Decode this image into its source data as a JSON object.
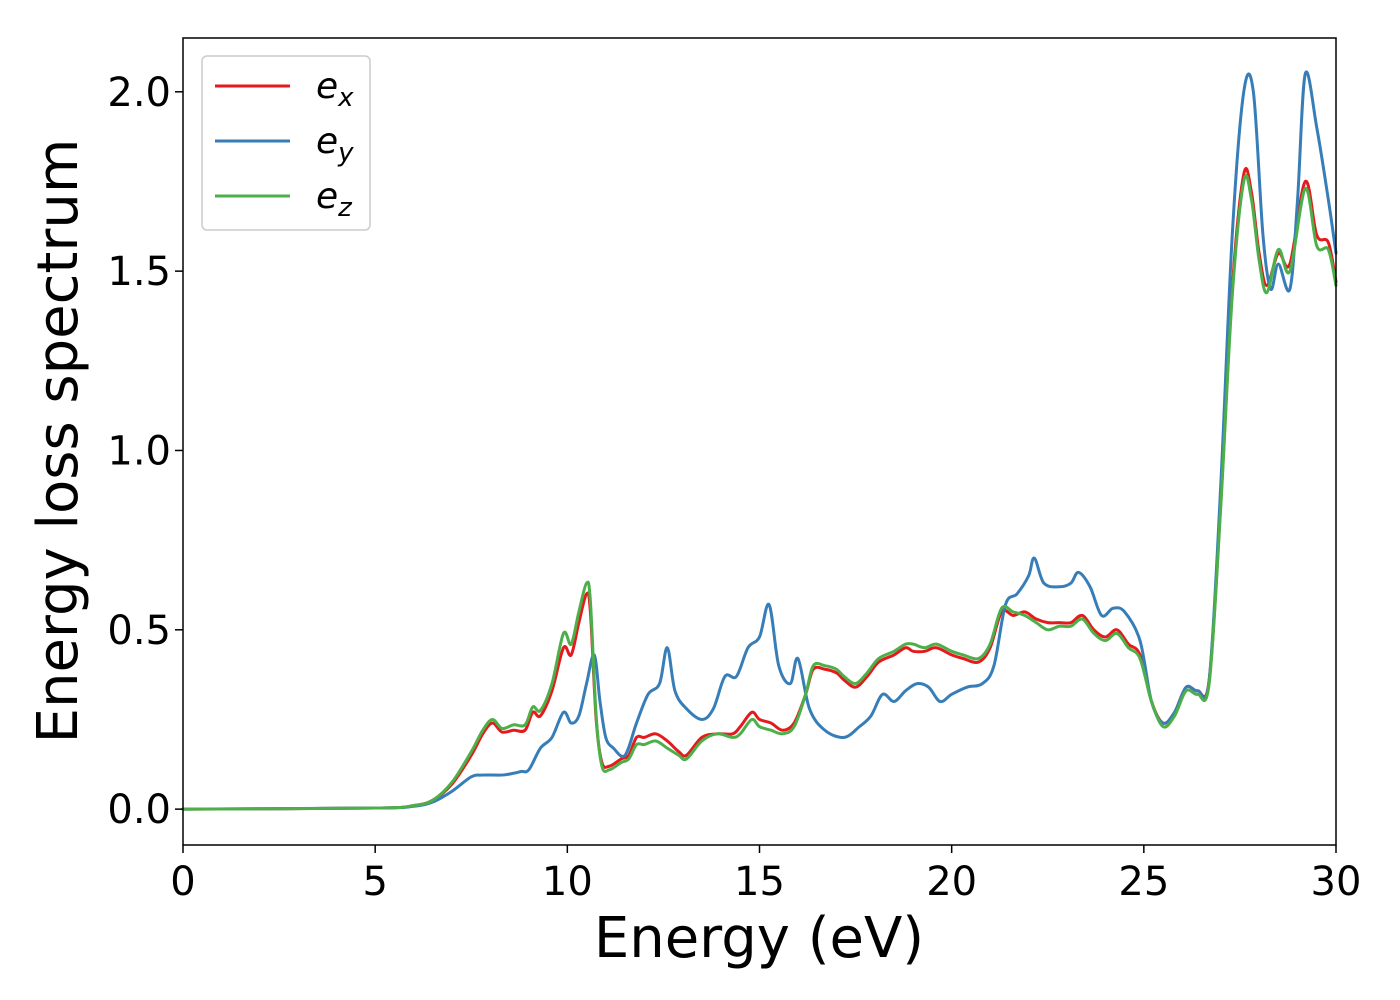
{
  "chart_data": {
    "type": "line",
    "xlabel": "Energy (eV)",
    "ylabel": "Energy loss spectrum",
    "xlim": [
      0,
      30
    ],
    "ylim": [
      -0.1,
      2.15
    ],
    "xticks": [
      0,
      5,
      10,
      15,
      20,
      25,
      30
    ],
    "yticks": [
      0.0,
      0.5,
      1.0,
      1.5,
      2.0
    ],
    "xtick_labels": [
      "0",
      "5",
      "10",
      "15",
      "20",
      "25",
      "30"
    ],
    "ytick_labels": [
      "0.0",
      "0.5",
      "1.0",
      "1.5",
      "2.0"
    ],
    "grid": false,
    "legend_position": "top-left",
    "series": [
      {
        "name": "e_x",
        "legend_base": "e",
        "legend_sub": "x",
        "color": "#e41a1c",
        "points": [
          [
            0,
            0
          ],
          [
            5,
            0.003
          ],
          [
            6,
            0.01
          ],
          [
            6.5,
            0.025
          ],
          [
            7,
            0.07
          ],
          [
            7.5,
            0.15
          ],
          [
            7.8,
            0.21
          ],
          [
            8.05,
            0.24
          ],
          [
            8.3,
            0.215
          ],
          [
            8.6,
            0.22
          ],
          [
            8.9,
            0.22
          ],
          [
            9.1,
            0.27
          ],
          [
            9.3,
            0.26
          ],
          [
            9.6,
            0.33
          ],
          [
            9.9,
            0.45
          ],
          [
            10.1,
            0.43
          ],
          [
            10.3,
            0.52
          ],
          [
            10.5,
            0.6
          ],
          [
            10.6,
            0.55
          ],
          [
            10.75,
            0.25
          ],
          [
            10.9,
            0.13
          ],
          [
            11.1,
            0.12
          ],
          [
            11.4,
            0.14
          ],
          [
            11.6,
            0.15
          ],
          [
            11.8,
            0.2
          ],
          [
            12.0,
            0.2
          ],
          [
            12.3,
            0.21
          ],
          [
            12.6,
            0.19
          ],
          [
            12.9,
            0.16
          ],
          [
            13.1,
            0.15
          ],
          [
            13.5,
            0.2
          ],
          [
            13.9,
            0.21
          ],
          [
            14.3,
            0.21
          ],
          [
            14.5,
            0.23
          ],
          [
            14.8,
            0.27
          ],
          [
            15.0,
            0.25
          ],
          [
            15.3,
            0.24
          ],
          [
            15.6,
            0.22
          ],
          [
            15.9,
            0.24
          ],
          [
            16.2,
            0.32
          ],
          [
            16.4,
            0.39
          ],
          [
            16.7,
            0.39
          ],
          [
            17.0,
            0.38
          ],
          [
            17.2,
            0.36
          ],
          [
            17.5,
            0.34
          ],
          [
            17.8,
            0.37
          ],
          [
            18.1,
            0.41
          ],
          [
            18.5,
            0.43
          ],
          [
            18.8,
            0.45
          ],
          [
            19.0,
            0.44
          ],
          [
            19.3,
            0.44
          ],
          [
            19.6,
            0.45
          ],
          [
            20.0,
            0.43
          ],
          [
            20.3,
            0.42
          ],
          [
            20.7,
            0.41
          ],
          [
            21.0,
            0.45
          ],
          [
            21.3,
            0.55
          ],
          [
            21.6,
            0.54
          ],
          [
            21.9,
            0.55
          ],
          [
            22.2,
            0.53
          ],
          [
            22.5,
            0.52
          ],
          [
            22.8,
            0.52
          ],
          [
            23.1,
            0.52
          ],
          [
            23.4,
            0.54
          ],
          [
            23.7,
            0.5
          ],
          [
            24.0,
            0.48
          ],
          [
            24.3,
            0.5
          ],
          [
            24.6,
            0.46
          ],
          [
            24.9,
            0.43
          ],
          [
            25.2,
            0.3
          ],
          [
            25.5,
            0.24
          ],
          [
            25.8,
            0.27
          ],
          [
            26.1,
            0.34
          ],
          [
            26.4,
            0.33
          ],
          [
            26.7,
            0.36
          ],
          [
            27.0,
            0.85
          ],
          [
            27.3,
            1.45
          ],
          [
            27.6,
            1.77
          ],
          [
            27.8,
            1.72
          ],
          [
            28.0,
            1.55
          ],
          [
            28.2,
            1.46
          ],
          [
            28.5,
            1.55
          ],
          [
            28.8,
            1.52
          ],
          [
            29.2,
            1.75
          ],
          [
            29.5,
            1.6
          ],
          [
            29.8,
            1.58
          ],
          [
            30,
            1.47
          ]
        ]
      },
      {
        "name": "e_y",
        "legend_base": "e",
        "legend_sub": "y",
        "color": "#377eb8",
        "points": [
          [
            0,
            0
          ],
          [
            5,
            0.003
          ],
          [
            6,
            0.008
          ],
          [
            6.5,
            0.02
          ],
          [
            7,
            0.05
          ],
          [
            7.5,
            0.09
          ],
          [
            7.8,
            0.095
          ],
          [
            8.3,
            0.095
          ],
          [
            8.6,
            0.1
          ],
          [
            8.8,
            0.105
          ],
          [
            9.0,
            0.11
          ],
          [
            9.3,
            0.17
          ],
          [
            9.6,
            0.2
          ],
          [
            9.9,
            0.27
          ],
          [
            10.1,
            0.24
          ],
          [
            10.3,
            0.26
          ],
          [
            10.5,
            0.35
          ],
          [
            10.7,
            0.43
          ],
          [
            10.85,
            0.3
          ],
          [
            11.0,
            0.2
          ],
          [
            11.2,
            0.17
          ],
          [
            11.5,
            0.15
          ],
          [
            11.8,
            0.24
          ],
          [
            12.1,
            0.32
          ],
          [
            12.4,
            0.35
          ],
          [
            12.6,
            0.45
          ],
          [
            12.8,
            0.33
          ],
          [
            13.1,
            0.28
          ],
          [
            13.5,
            0.25
          ],
          [
            13.8,
            0.28
          ],
          [
            14.1,
            0.37
          ],
          [
            14.4,
            0.37
          ],
          [
            14.7,
            0.45
          ],
          [
            15.0,
            0.48
          ],
          [
            15.25,
            0.57
          ],
          [
            15.5,
            0.4
          ],
          [
            15.8,
            0.35
          ],
          [
            16.0,
            0.42
          ],
          [
            16.3,
            0.28
          ],
          [
            16.7,
            0.22
          ],
          [
            17.2,
            0.2
          ],
          [
            17.6,
            0.23
          ],
          [
            17.9,
            0.26
          ],
          [
            18.2,
            0.32
          ],
          [
            18.5,
            0.3
          ],
          [
            18.8,
            0.33
          ],
          [
            19.1,
            0.35
          ],
          [
            19.4,
            0.34
          ],
          [
            19.7,
            0.3
          ],
          [
            20.0,
            0.32
          ],
          [
            20.4,
            0.34
          ],
          [
            20.8,
            0.35
          ],
          [
            21.1,
            0.4
          ],
          [
            21.4,
            0.57
          ],
          [
            21.7,
            0.6
          ],
          [
            22.0,
            0.65
          ],
          [
            22.15,
            0.7
          ],
          [
            22.4,
            0.63
          ],
          [
            22.8,
            0.62
          ],
          [
            23.1,
            0.63
          ],
          [
            23.3,
            0.66
          ],
          [
            23.6,
            0.62
          ],
          [
            23.9,
            0.54
          ],
          [
            24.2,
            0.56
          ],
          [
            24.5,
            0.55
          ],
          [
            24.9,
            0.47
          ],
          [
            25.2,
            0.3
          ],
          [
            25.5,
            0.24
          ],
          [
            25.8,
            0.27
          ],
          [
            26.1,
            0.34
          ],
          [
            26.4,
            0.33
          ],
          [
            26.7,
            0.36
          ],
          [
            27.0,
            0.9
          ],
          [
            27.3,
            1.6
          ],
          [
            27.6,
            2.0
          ],
          [
            27.85,
            2.0
          ],
          [
            28.1,
            1.6
          ],
          [
            28.3,
            1.45
          ],
          [
            28.5,
            1.52
          ],
          [
            28.8,
            1.45
          ],
          [
            29.0,
            1.7
          ],
          [
            29.2,
            2.05
          ],
          [
            29.5,
            1.9
          ],
          [
            29.8,
            1.7
          ],
          [
            30,
            1.55
          ]
        ]
      },
      {
        "name": "e_z",
        "legend_base": "e",
        "legend_sub": "z",
        "color": "#4daf4a",
        "points": [
          [
            0,
            0
          ],
          [
            5,
            0.003
          ],
          [
            6,
            0.01
          ],
          [
            6.5,
            0.025
          ],
          [
            7,
            0.075
          ],
          [
            7.5,
            0.16
          ],
          [
            7.8,
            0.22
          ],
          [
            8.05,
            0.25
          ],
          [
            8.3,
            0.225
          ],
          [
            8.6,
            0.235
          ],
          [
            8.9,
            0.235
          ],
          [
            9.1,
            0.285
          ],
          [
            9.3,
            0.275
          ],
          [
            9.6,
            0.35
          ],
          [
            9.9,
            0.49
          ],
          [
            10.1,
            0.46
          ],
          [
            10.3,
            0.55
          ],
          [
            10.5,
            0.63
          ],
          [
            10.6,
            0.58
          ],
          [
            10.75,
            0.26
          ],
          [
            10.9,
            0.12
          ],
          [
            11.1,
            0.11
          ],
          [
            11.4,
            0.13
          ],
          [
            11.6,
            0.14
          ],
          [
            11.8,
            0.18
          ],
          [
            12.0,
            0.18
          ],
          [
            12.3,
            0.19
          ],
          [
            12.6,
            0.17
          ],
          [
            12.9,
            0.15
          ],
          [
            13.1,
            0.14
          ],
          [
            13.5,
            0.19
          ],
          [
            13.9,
            0.21
          ],
          [
            14.3,
            0.2
          ],
          [
            14.5,
            0.21
          ],
          [
            14.8,
            0.25
          ],
          [
            15.0,
            0.23
          ],
          [
            15.3,
            0.22
          ],
          [
            15.6,
            0.21
          ],
          [
            15.9,
            0.23
          ],
          [
            16.2,
            0.32
          ],
          [
            16.4,
            0.4
          ],
          [
            16.7,
            0.4
          ],
          [
            17.0,
            0.39
          ],
          [
            17.2,
            0.37
          ],
          [
            17.5,
            0.35
          ],
          [
            17.8,
            0.38
          ],
          [
            18.1,
            0.42
          ],
          [
            18.5,
            0.44
          ],
          [
            18.8,
            0.46
          ],
          [
            19.0,
            0.46
          ],
          [
            19.3,
            0.45
          ],
          [
            19.6,
            0.46
          ],
          [
            20.0,
            0.44
          ],
          [
            20.3,
            0.43
          ],
          [
            20.7,
            0.42
          ],
          [
            21.0,
            0.46
          ],
          [
            21.3,
            0.56
          ],
          [
            21.6,
            0.55
          ],
          [
            21.9,
            0.54
          ],
          [
            22.2,
            0.52
          ],
          [
            22.5,
            0.5
          ],
          [
            22.8,
            0.51
          ],
          [
            23.1,
            0.51
          ],
          [
            23.4,
            0.53
          ],
          [
            23.7,
            0.49
          ],
          [
            24.0,
            0.47
          ],
          [
            24.3,
            0.49
          ],
          [
            24.6,
            0.45
          ],
          [
            24.9,
            0.42
          ],
          [
            25.2,
            0.3
          ],
          [
            25.5,
            0.23
          ],
          [
            25.8,
            0.26
          ],
          [
            26.1,
            0.33
          ],
          [
            26.4,
            0.32
          ],
          [
            26.7,
            0.35
          ],
          [
            27.0,
            0.84
          ],
          [
            27.3,
            1.43
          ],
          [
            27.6,
            1.75
          ],
          [
            27.8,
            1.7
          ],
          [
            28.0,
            1.53
          ],
          [
            28.2,
            1.44
          ],
          [
            28.5,
            1.56
          ],
          [
            28.8,
            1.5
          ],
          [
            29.2,
            1.73
          ],
          [
            29.5,
            1.57
          ],
          [
            29.8,
            1.56
          ],
          [
            30,
            1.46
          ]
        ]
      }
    ]
  }
}
